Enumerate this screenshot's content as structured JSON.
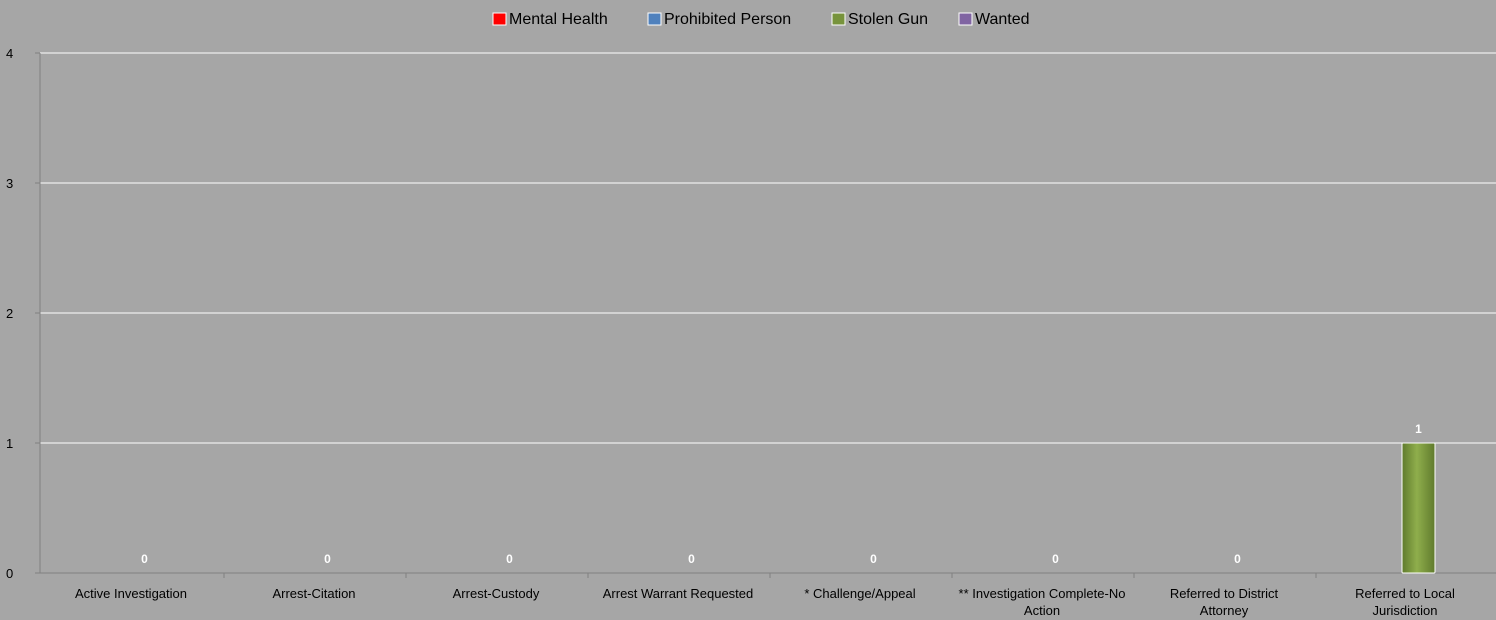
{
  "chart_data": {
    "type": "bar",
    "categories": [
      "Active Investigation",
      "Arrest-Citation",
      "Arrest-Custody",
      "Arrest Warrant Requested",
      "* Challenge/Appeal",
      "** Investigation Complete-No Action",
      "Referred to District Attorney",
      "Referred to Local Jurisdiction"
    ],
    "category_lines": [
      [
        "Active Investigation"
      ],
      [
        "Arrest-Citation"
      ],
      [
        "Arrest-Custody"
      ],
      [
        "Arrest Warrant Requested"
      ],
      [
        "* Challenge/Appeal"
      ],
      [
        "** Investigation Complete-No",
        "Action"
      ],
      [
        "Referred to District",
        "Attorney"
      ],
      [
        "Referred to Local",
        "Jurisdiction"
      ]
    ],
    "series": [
      {
        "name": "Mental Health",
        "color": "#ff0000",
        "values": [
          0,
          0,
          0,
          0,
          0,
          0,
          0,
          0
        ]
      },
      {
        "name": "Prohibited Person",
        "color": "#4f81bd",
        "values": [
          0,
          0,
          0,
          0,
          0,
          0,
          0,
          0
        ]
      },
      {
        "name": "Stolen Gun",
        "color": "#77933c",
        "values": [
          0,
          0,
          0,
          0,
          0,
          0,
          0,
          1
        ]
      },
      {
        "name": "Wanted",
        "color": "#8064a2",
        "values": [
          0,
          0,
          0,
          0,
          0,
          0,
          0,
          0
        ]
      }
    ],
    "data_labels": [
      "0",
      "0",
      "0",
      "0",
      "0",
      "0",
      "0",
      "1"
    ],
    "data_label_series": "Stolen Gun",
    "yticks": [
      "0",
      "1",
      "2",
      "3",
      "4"
    ],
    "ylim": [
      0,
      4
    ],
    "grid": true,
    "legend_position": "top-center",
    "background": "#a6a6a6",
    "title": "",
    "xlabel": "",
    "ylabel": ""
  }
}
